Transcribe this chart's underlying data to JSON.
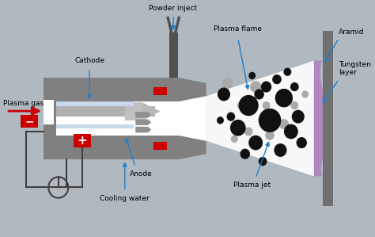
{
  "bg_color": "#b0b8c0",
  "title": "",
  "labels": {
    "plasma_gas": "Plasma gas",
    "cathode": "Cathode",
    "powder_inject": "Powder inject",
    "plasma_flame": "Plasma flame",
    "aramid": "Aramid",
    "tungsten_layer": "Tungsten\nlayer",
    "plasma_jet": "Plasma jet",
    "anode": "Anode",
    "cooling_water": "Cooling water",
    "minus": "−",
    "plus": "+"
  },
  "colors": {
    "gun_body": "#808080",
    "gun_inner": "#d8d8d8",
    "white": "#ffffff",
    "red_block": "#cc0000",
    "electrode": "#a0a0a0",
    "plasma_jet_white": "#f0f0f0",
    "tungsten": "#b090c0",
    "substrate": "#707070",
    "black_spot": "#111111",
    "gray_spot": "#888888",
    "wire_color": "#404040",
    "arrow_blue": "#2080cc",
    "arrow_red": "#cc2020",
    "powder_tube": "#505050"
  }
}
